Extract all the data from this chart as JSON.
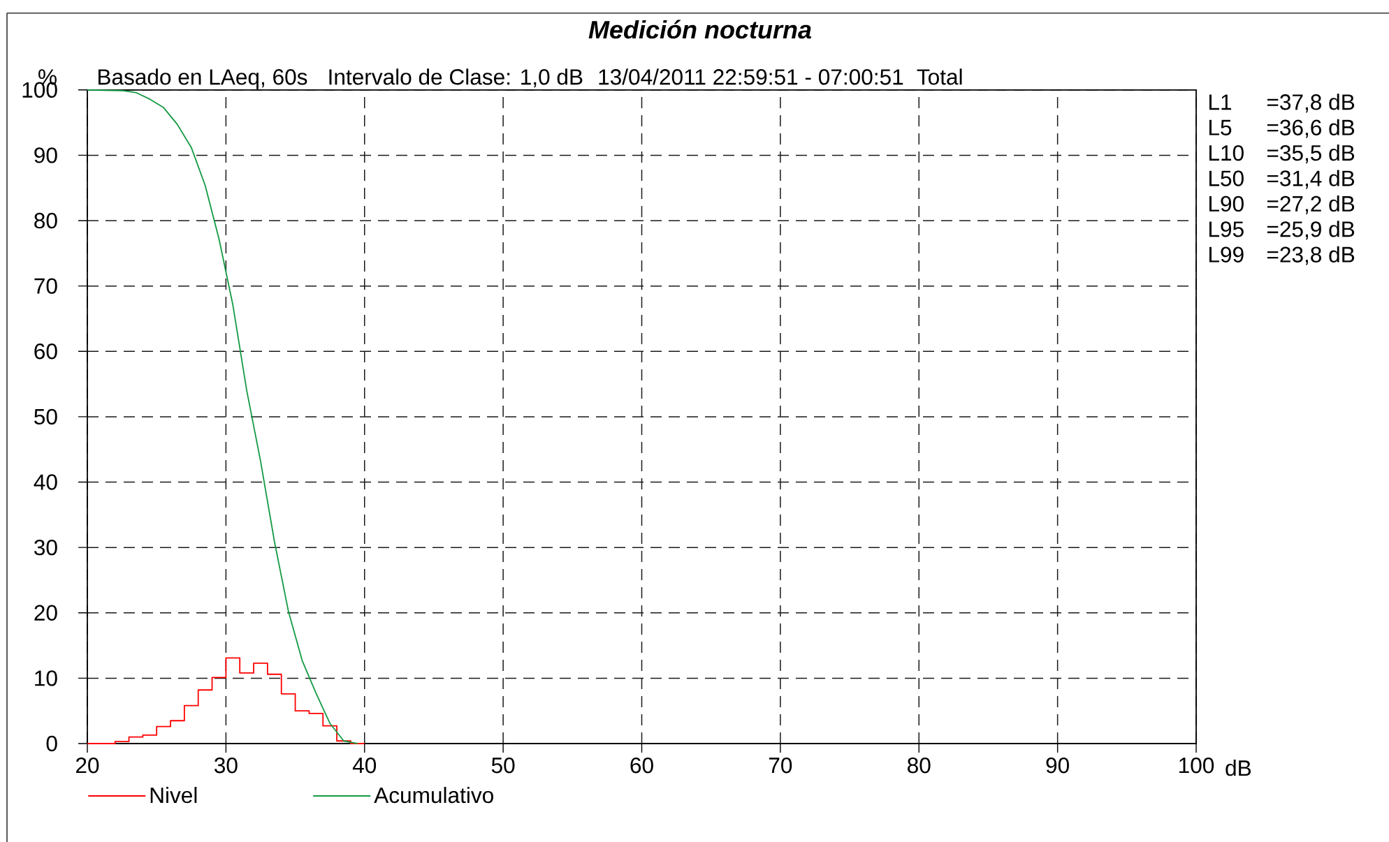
{
  "chart_data": {
    "type": "line",
    "title": "Medición nocturna",
    "xlabel": "dB",
    "ylabel": "%",
    "annotations": [
      "Basado en LAeq, 60s",
      "Intervalo de Clase: 1,0 dB",
      "13/04/2011 22:59:51 - 07:00:51",
      "Total",
      "L1",
      "=37,8 dB",
      "L5",
      "=36,6 dB",
      "L10",
      "=35,5 dB",
      "L50",
      "=31,4 dB",
      "L90",
      "=27,2 dB",
      "L95",
      "=25,9 dB",
      "L99",
      "=23,8 dB"
    ],
    "series": [
      {
        "name": "Nivel",
        "type": "step",
        "color": "#ff0000",
        "x": [
          20,
          21,
          22,
          23,
          24,
          25,
          26,
          27,
          28,
          29,
          30,
          31,
          32,
          33,
          34,
          35,
          36,
          37,
          38,
          39,
          40
        ],
        "values": [
          0,
          0,
          0.3,
          1.0,
          1.3,
          2.6,
          3.5,
          5.8,
          8.2,
          10.1,
          13.1,
          10.8,
          12.3,
          10.6,
          7.6,
          5.0,
          4.6,
          2.7,
          0.4,
          0,
          0
        ]
      },
      {
        "name": "Acumulativo",
        "type": "line",
        "color": "#139a43",
        "x": [
          20,
          22.5,
          23.5,
          24.5,
          25.5,
          26.5,
          27.5,
          28.5,
          29.5,
          30.5,
          31.5,
          32.5,
          33.5,
          34.5,
          35.5,
          36.5,
          37.5,
          38.5,
          39.5
        ],
        "values": [
          100,
          99.9,
          99.6,
          98.6,
          97.3,
          94.7,
          91.2,
          85.4,
          77.2,
          67.1,
          54.0,
          43.2,
          30.9,
          20.3,
          12.7,
          7.7,
          3.1,
          0.4,
          0
        ]
      }
    ],
    "xlim": [
      20,
      100
    ],
    "xticks": [
      20,
      30,
      40,
      50,
      60,
      70,
      80,
      90,
      100
    ],
    "ylim": [
      0,
      100
    ],
    "yticks": [
      0,
      10,
      20,
      30,
      40,
      50,
      60,
      70,
      80,
      90,
      100
    ],
    "grid": true,
    "legend": "bottom left",
    "marker": "none",
    "line_style": "solid"
  }
}
